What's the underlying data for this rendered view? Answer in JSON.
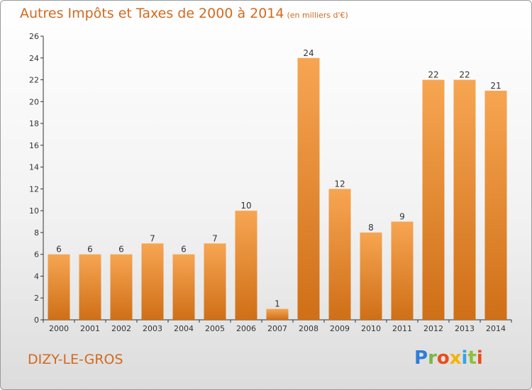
{
  "header": {
    "title": "Autres Impôts et Taxes de 2000 à 2014",
    "subtitle": "(en milliers d'€)"
  },
  "footer": {
    "commune": "DIZY-LE-GROS",
    "logo_letters": [
      "P",
      "r",
      "o",
      "x",
      "i",
      "t",
      "i"
    ]
  },
  "colors": {
    "bar_light": "#f7a552",
    "bar_dark": "#cf6f17",
    "title": "#d2691e"
  },
  "chart_data": {
    "type": "bar",
    "title": "Autres Impôts et Taxes de 2000 à 2014",
    "subtitle": "(en milliers d'€)",
    "categories": [
      "2000",
      "2001",
      "2002",
      "2003",
      "2004",
      "2005",
      "2006",
      "2007",
      "2008",
      "2009",
      "2010",
      "2011",
      "2012",
      "2013",
      "2014"
    ],
    "values": [
      6,
      6,
      6,
      7,
      6,
      7,
      10,
      1,
      24,
      12,
      8,
      9,
      22,
      22,
      21
    ],
    "ylim": [
      0,
      26
    ],
    "yticks": [
      0,
      2,
      4,
      6,
      8,
      10,
      12,
      14,
      16,
      18,
      20,
      22,
      24,
      26
    ],
    "grid": false,
    "legend": "none"
  }
}
